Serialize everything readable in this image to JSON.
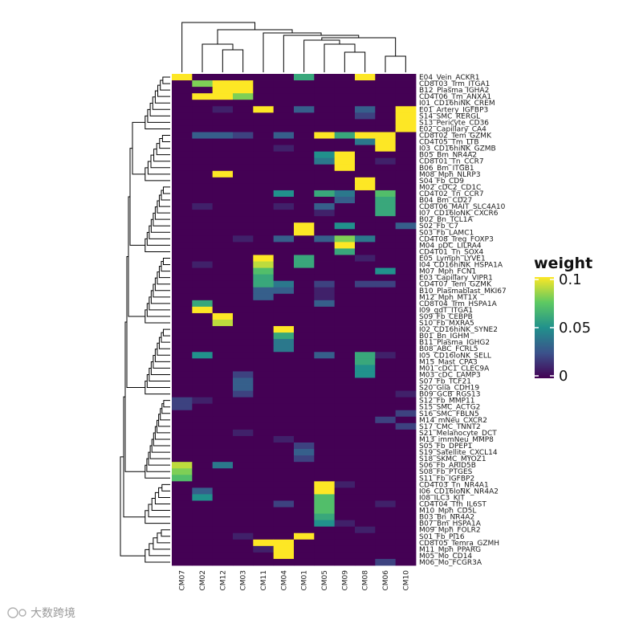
{
  "chart_data": {
    "type": "heatmap",
    "columns": [
      "CM07",
      "CM02",
      "CM12",
      "CM03",
      "CM11",
      "CM04",
      "CM01",
      "CM05",
      "CM09",
      "CM08",
      "CM06",
      "CM10"
    ],
    "rows": [
      "E04_Vein_ACKR1",
      "CD8T03_Trm_ITGA1",
      "B12_Plasma_IGHA2",
      "CD4T06_Tm_ANXA1",
      "I01_CD16hiNK_CREM",
      "E01_Artery_IGFBP3",
      "S14_SMC_RERGL",
      "S13_Pericyte_CD36",
      "E02_Capillary_CA4",
      "CD8T02_Tem_GZMK",
      "CD4T05_Tm_LTB",
      "I03_CD16hiNK_GZMB",
      "B05_Bm_NR4A2",
      "CD8T01_Tn_CCR7",
      "B06_Bm_ITGB1",
      "M08_Mph_NLRP3",
      "S04_Fb_CD9",
      "M02_cDC2_CD1C",
      "CD4T02_Tn_CCR7",
      "B04_Bm_CD27",
      "CD8T06_MAIT_SLC4A10",
      "I07_CD16loNK_CXCR6",
      "B02_Bn_TCL1A",
      "S02_Fb_C7",
      "S03_Fb_LAMC1",
      "CD4T08_Treg_FOXP3",
      "M04_pDC_LILRA4",
      "CD4T01_Tn_SOX4",
      "E05_Lymph_LYVE1",
      "I04_CD16hiNK_HSPA1A",
      "M07_Mph_FCN1",
      "E03_Capillary_VIPR1",
      "CD4T07_Tem_GZMK",
      "B10_Plasmablast_MKI67",
      "M12_Mph_MT1X",
      "CD8T04_Trm_HSPA1A",
      "I09_gdT_ITGA1",
      "S09_Fb_CEBPB",
      "S10_Fb_MXRA5",
      "I02_CD16hiNK_SYNE2",
      "B01_Bn_IGHM",
      "B11_Plasma_IGHG2",
      "B08_ABC_FCRL5",
      "I05_CD16loNK_SELL",
      "M15_Mast_CPA3",
      "M01_cDC1_CLEC9A",
      "M03_cDC_LAMP3",
      "S07_Fb_TCF21",
      "S20_Glia_CDH19",
      "B09_GCB_RGS13",
      "S12_Fb_MMP11",
      "S15_SMC_ACTG2",
      "S16_SMC_FBLN5",
      "M14_mNeu_CXCR2",
      "S17_CMC_TNNT2",
      "S21_Melanocyte_DCT",
      "M13_immNeu_MMP8",
      "S05_Fb_DPEP1",
      "S19_Satellite_CXCL14",
      "S18_SKMC_MYOZ1",
      "S06_Fb_ARID5B",
      "S08_Fb_PTGES",
      "S11_Fb_IGFBP2",
      "CD4T03_Tn_NR4A1",
      "I06_CD16loNK_NR4A2",
      "I08_ILC3_KIT",
      "CD4T04_Tfh_IL6ST",
      "M10_Mph_CD5L",
      "B03_Bn_NR4A2",
      "B07_Bm_HSPA1A",
      "M09_Mph_FOLR2",
      "S01_Fb_PI16",
      "CD8T05_Temra_GZMH",
      "M11_Mph_PPARG",
      "M05_Mo_CD14",
      "M06_Mo_FCGR3A"
    ],
    "values": [
      [
        0.1,
        0.0,
        0.0,
        0.0,
        0.0,
        0.0,
        0.06,
        0.0,
        0.0,
        0.1,
        0.0,
        0.0
      ],
      [
        0.0,
        0.08,
        0.1,
        0.1,
        0.0,
        0.0,
        0.0,
        0.0,
        0.0,
        0.0,
        0.0,
        0.0
      ],
      [
        0.0,
        0.0,
        0.1,
        0.1,
        0.0,
        0.0,
        0.0,
        0.0,
        0.0,
        0.0,
        0.0,
        0.0
      ],
      [
        0.0,
        0.1,
        0.1,
        0.08,
        0.0,
        0.0,
        0.0,
        0.0,
        0.0,
        0.0,
        0.0,
        0.0
      ],
      [
        0.0,
        0.0,
        0.0,
        0.0,
        0.0,
        0.0,
        0.0,
        0.0,
        0.0,
        0.0,
        0.0,
        0.0
      ],
      [
        0.0,
        0.0,
        0.01,
        0.0,
        0.1,
        0.0,
        0.03,
        0.0,
        0.0,
        0.03,
        0.0,
        0.1
      ],
      [
        0.0,
        0.0,
        0.0,
        0.0,
        0.0,
        0.0,
        0.0,
        0.0,
        0.0,
        0.02,
        0.0,
        0.1
      ],
      [
        0.0,
        0.0,
        0.0,
        0.0,
        0.0,
        0.0,
        0.0,
        0.0,
        0.0,
        0.0,
        0.0,
        0.1
      ],
      [
        0.0,
        0.0,
        0.0,
        0.0,
        0.0,
        0.0,
        0.0,
        0.0,
        0.0,
        0.0,
        0.0,
        0.1
      ],
      [
        0.0,
        0.03,
        0.03,
        0.02,
        0.0,
        0.03,
        0.0,
        0.1,
        0.06,
        0.1,
        0.1,
        0.0
      ],
      [
        0.0,
        0.0,
        0.0,
        0.0,
        0.0,
        0.0,
        0.0,
        0.0,
        0.0,
        0.04,
        0.1,
        0.0
      ],
      [
        0.0,
        0.0,
        0.0,
        0.0,
        0.0,
        0.01,
        0.0,
        0.0,
        0.0,
        0.0,
        0.1,
        0.0
      ],
      [
        0.0,
        0.0,
        0.0,
        0.0,
        0.0,
        0.0,
        0.0,
        0.05,
        0.1,
        0.0,
        0.0,
        0.0
      ],
      [
        0.0,
        0.0,
        0.0,
        0.0,
        0.0,
        0.0,
        0.0,
        0.04,
        0.1,
        0.0,
        0.01,
        0.0
      ],
      [
        0.0,
        0.0,
        0.0,
        0.0,
        0.0,
        0.0,
        0.0,
        0.0,
        0.1,
        0.0,
        0.0,
        0.0
      ],
      [
        0.0,
        0.0,
        0.1,
        0.0,
        0.0,
        0.0,
        0.0,
        0.0,
        0.0,
        0.0,
        0.0,
        0.0
      ],
      [
        0.0,
        0.0,
        0.0,
        0.0,
        0.0,
        0.0,
        0.0,
        0.0,
        0.0,
        0.1,
        0.0,
        0.0
      ],
      [
        0.0,
        0.0,
        0.0,
        0.0,
        0.0,
        0.0,
        0.0,
        0.0,
        0.0,
        0.1,
        0.0,
        0.0
      ],
      [
        0.0,
        0.0,
        0.0,
        0.0,
        0.0,
        0.05,
        0.0,
        0.06,
        0.04,
        0.0,
        0.07,
        0.0
      ],
      [
        0.0,
        0.0,
        0.0,
        0.0,
        0.0,
        0.0,
        0.0,
        0.0,
        0.03,
        0.0,
        0.06,
        0.0
      ],
      [
        0.0,
        0.01,
        0.0,
        0.0,
        0.0,
        0.01,
        0.0,
        0.03,
        0.0,
        0.0,
        0.06,
        0.0
      ],
      [
        0.0,
        0.0,
        0.0,
        0.0,
        0.0,
        0.0,
        0.0,
        0.01,
        0.0,
        0.0,
        0.06,
        0.0
      ],
      [
        0.0,
        0.0,
        0.0,
        0.0,
        0.0,
        0.0,
        0.0,
        0.0,
        0.0,
        0.0,
        0.0,
        0.0
      ],
      [
        0.0,
        0.0,
        0.0,
        0.0,
        0.0,
        0.0,
        0.1,
        0.0,
        0.05,
        0.0,
        0.0,
        0.03
      ],
      [
        0.0,
        0.0,
        0.0,
        0.0,
        0.0,
        0.0,
        0.1,
        0.0,
        0.0,
        0.0,
        0.0,
        0.0
      ],
      [
        0.0,
        0.0,
        0.0,
        0.01,
        0.0,
        0.03,
        0.0,
        0.03,
        0.08,
        0.04,
        0.0,
        0.0
      ],
      [
        0.0,
        0.0,
        0.0,
        0.0,
        0.0,
        0.0,
        0.0,
        0.0,
        0.1,
        0.0,
        0.0,
        0.0
      ],
      [
        0.0,
        0.0,
        0.0,
        0.0,
        0.0,
        0.0,
        0.0,
        0.0,
        0.06,
        0.0,
        0.0,
        0.0
      ],
      [
        0.0,
        0.0,
        0.0,
        0.0,
        0.1,
        0.0,
        0.06,
        0.0,
        0.0,
        0.01,
        0.0,
        0.0
      ],
      [
        0.0,
        0.01,
        0.0,
        0.0,
        0.09,
        0.0,
        0.06,
        0.0,
        0.0,
        0.0,
        0.0,
        0.0
      ],
      [
        0.0,
        0.0,
        0.0,
        0.0,
        0.07,
        0.0,
        0.0,
        0.0,
        0.0,
        0.0,
        0.05,
        0.0
      ],
      [
        0.0,
        0.0,
        0.0,
        0.0,
        0.06,
        0.0,
        0.0,
        0.0,
        0.0,
        0.0,
        0.0,
        0.0
      ],
      [
        0.0,
        0.0,
        0.0,
        0.0,
        0.06,
        0.04,
        0.0,
        0.02,
        0.0,
        0.02,
        0.02,
        0.0
      ],
      [
        0.0,
        0.0,
        0.0,
        0.0,
        0.03,
        0.03,
        0.0,
        0.01,
        0.0,
        0.0,
        0.0,
        0.0
      ],
      [
        0.0,
        0.0,
        0.0,
        0.0,
        0.03,
        0.0,
        0.0,
        0.01,
        0.0,
        0.0,
        0.0,
        0.0
      ],
      [
        0.0,
        0.06,
        0.0,
        0.0,
        0.0,
        0.0,
        0.0,
        0.03,
        0.0,
        0.0,
        0.0,
        0.0
      ],
      [
        0.0,
        0.1,
        0.0,
        0.0,
        0.0,
        0.0,
        0.0,
        0.0,
        0.0,
        0.0,
        0.0,
        0.0
      ],
      [
        0.0,
        0.0,
        0.1,
        0.0,
        0.0,
        0.0,
        0.0,
        0.0,
        0.0,
        0.0,
        0.0,
        0.0
      ],
      [
        0.0,
        0.0,
        0.09,
        0.0,
        0.0,
        0.0,
        0.0,
        0.0,
        0.0,
        0.0,
        0.0,
        0.0
      ],
      [
        0.0,
        0.0,
        0.0,
        0.0,
        0.0,
        0.1,
        0.0,
        0.0,
        0.0,
        0.0,
        0.0,
        0.0
      ],
      [
        0.0,
        0.0,
        0.0,
        0.0,
        0.0,
        0.06,
        0.0,
        0.0,
        0.0,
        0.0,
        0.0,
        0.0
      ],
      [
        0.0,
        0.0,
        0.0,
        0.0,
        0.0,
        0.04,
        0.0,
        0.0,
        0.0,
        0.0,
        0.0,
        0.0
      ],
      [
        0.0,
        0.0,
        0.0,
        0.0,
        0.0,
        0.04,
        0.0,
        0.0,
        0.0,
        0.0,
        0.0,
        0.0
      ],
      [
        0.0,
        0.05,
        0.0,
        0.0,
        0.0,
        0.0,
        0.0,
        0.03,
        0.0,
        0.06,
        0.01,
        0.0
      ],
      [
        0.0,
        0.0,
        0.0,
        0.0,
        0.0,
        0.0,
        0.0,
        0.0,
        0.0,
        0.06,
        0.0,
        0.0
      ],
      [
        0.0,
        0.0,
        0.0,
        0.0,
        0.0,
        0.0,
        0.0,
        0.0,
        0.0,
        0.05,
        0.0,
        0.0
      ],
      [
        0.0,
        0.0,
        0.0,
        0.02,
        0.0,
        0.0,
        0.0,
        0.0,
        0.0,
        0.05,
        0.0,
        0.0
      ],
      [
        0.0,
        0.0,
        0.0,
        0.03,
        0.0,
        0.0,
        0.0,
        0.0,
        0.0,
        0.0,
        0.0,
        0.0
      ],
      [
        0.0,
        0.0,
        0.0,
        0.03,
        0.0,
        0.0,
        0.0,
        0.0,
        0.0,
        0.0,
        0.0,
        0.0
      ],
      [
        0.0,
        0.0,
        0.0,
        0.02,
        0.0,
        0.0,
        0.0,
        0.0,
        0.0,
        0.0,
        0.0,
        0.01
      ],
      [
        0.02,
        0.01,
        0.0,
        0.0,
        0.0,
        0.0,
        0.0,
        0.0,
        0.0,
        0.0,
        0.0,
        0.0
      ],
      [
        0.02,
        0.0,
        0.0,
        0.0,
        0.0,
        0.0,
        0.0,
        0.0,
        0.0,
        0.0,
        0.0,
        0.0
      ],
      [
        0.0,
        0.0,
        0.0,
        0.0,
        0.0,
        0.0,
        0.0,
        0.0,
        0.0,
        0.0,
        0.0,
        0.02
      ],
      [
        0.0,
        0.0,
        0.0,
        0.0,
        0.0,
        0.0,
        0.0,
        0.0,
        0.0,
        0.0,
        0.02,
        0.0
      ],
      [
        0.0,
        0.0,
        0.0,
        0.0,
        0.0,
        0.0,
        0.0,
        0.0,
        0.0,
        0.0,
        0.0,
        0.02
      ],
      [
        0.0,
        0.0,
        0.0,
        0.01,
        0.0,
        0.0,
        0.0,
        0.0,
        0.0,
        0.0,
        0.0,
        0.0
      ],
      [
        0.0,
        0.0,
        0.0,
        0.0,
        0.0,
        0.01,
        0.0,
        0.0,
        0.0,
        0.0,
        0.0,
        0.0
      ],
      [
        0.0,
        0.0,
        0.0,
        0.0,
        0.0,
        0.0,
        0.02,
        0.0,
        0.0,
        0.0,
        0.0,
        0.0
      ],
      [
        0.0,
        0.0,
        0.0,
        0.0,
        0.0,
        0.0,
        0.03,
        0.0,
        0.0,
        0.0,
        0.0,
        0.0
      ],
      [
        0.0,
        0.0,
        0.0,
        0.0,
        0.0,
        0.0,
        0.02,
        0.0,
        0.0,
        0.0,
        0.0,
        0.0
      ],
      [
        0.09,
        0.0,
        0.04,
        0.0,
        0.0,
        0.0,
        0.0,
        0.0,
        0.0,
        0.0,
        0.0,
        0.0
      ],
      [
        0.08,
        0.0,
        0.0,
        0.0,
        0.0,
        0.0,
        0.0,
        0.0,
        0.0,
        0.0,
        0.0,
        0.0
      ],
      [
        0.07,
        0.0,
        0.0,
        0.0,
        0.0,
        0.0,
        0.0,
        0.0,
        0.0,
        0.0,
        0.0,
        0.0
      ],
      [
        0.0,
        0.0,
        0.0,
        0.0,
        0.0,
        0.0,
        0.0,
        0.1,
        0.01,
        0.0,
        0.0,
        0.0
      ],
      [
        0.0,
        0.03,
        0.0,
        0.0,
        0.0,
        0.0,
        0.0,
        0.1,
        0.0,
        0.0,
        0.0,
        0.0
      ],
      [
        0.0,
        0.05,
        0.0,
        0.0,
        0.0,
        0.0,
        0.0,
        0.07,
        0.0,
        0.0,
        0.0,
        0.0
      ],
      [
        0.0,
        0.0,
        0.0,
        0.0,
        0.0,
        0.02,
        0.0,
        0.07,
        0.0,
        0.0,
        0.01,
        0.0
      ],
      [
        0.0,
        0.0,
        0.0,
        0.0,
        0.0,
        0.0,
        0.0,
        0.07,
        0.0,
        0.0,
        0.0,
        0.0
      ],
      [
        0.0,
        0.0,
        0.0,
        0.0,
        0.0,
        0.0,
        0.0,
        0.06,
        0.0,
        0.0,
        0.0,
        0.0
      ],
      [
        0.0,
        0.0,
        0.0,
        0.0,
        0.0,
        0.0,
        0.0,
        0.05,
        0.01,
        0.0,
        0.0,
        0.0
      ],
      [
        0.0,
        0.0,
        0.0,
        0.0,
        0.0,
        0.0,
        0.0,
        0.0,
        0.0,
        0.01,
        0.0,
        0.0
      ],
      [
        0.0,
        0.0,
        0.0,
        0.01,
        0.0,
        0.0,
        0.1,
        0.0,
        0.0,
        0.0,
        0.0,
        0.0
      ],
      [
        0.0,
        0.0,
        0.0,
        0.0,
        0.1,
        0.1,
        0.0,
        0.0,
        0.0,
        0.0,
        0.0,
        0.0
      ],
      [
        0.0,
        0.0,
        0.0,
        0.0,
        0.01,
        0.1,
        0.0,
        0.0,
        0.0,
        0.0,
        0.0,
        0.0
      ],
      [
        0.0,
        0.0,
        0.0,
        0.0,
        0.0,
        0.1,
        0.0,
        0.0,
        0.0,
        0.0,
        0.0,
        0.0
      ],
      [
        0.0,
        0.0,
        0.0,
        0.0,
        0.0,
        0.0,
        0.0,
        0.0,
        0.0,
        0.0,
        0.02,
        0.0
      ]
    ],
    "color_scale": {
      "name": "viridis",
      "range": [
        0,
        0.1
      ],
      "colors": [
        "#440154",
        "#3b528b",
        "#21918c",
        "#5ec962",
        "#fde725"
      ]
    },
    "legend": {
      "title": "weight",
      "ticks": [
        0.1,
        0.05,
        0
      ],
      "tick_labels": [
        "0.1",
        "0.05",
        "0"
      ],
      "placement": "right"
    },
    "row_dendrogram": true,
    "column_dendrogram": true,
    "title": "",
    "xlabel": "",
    "ylabel": ""
  },
  "watermark": "大数跨境"
}
